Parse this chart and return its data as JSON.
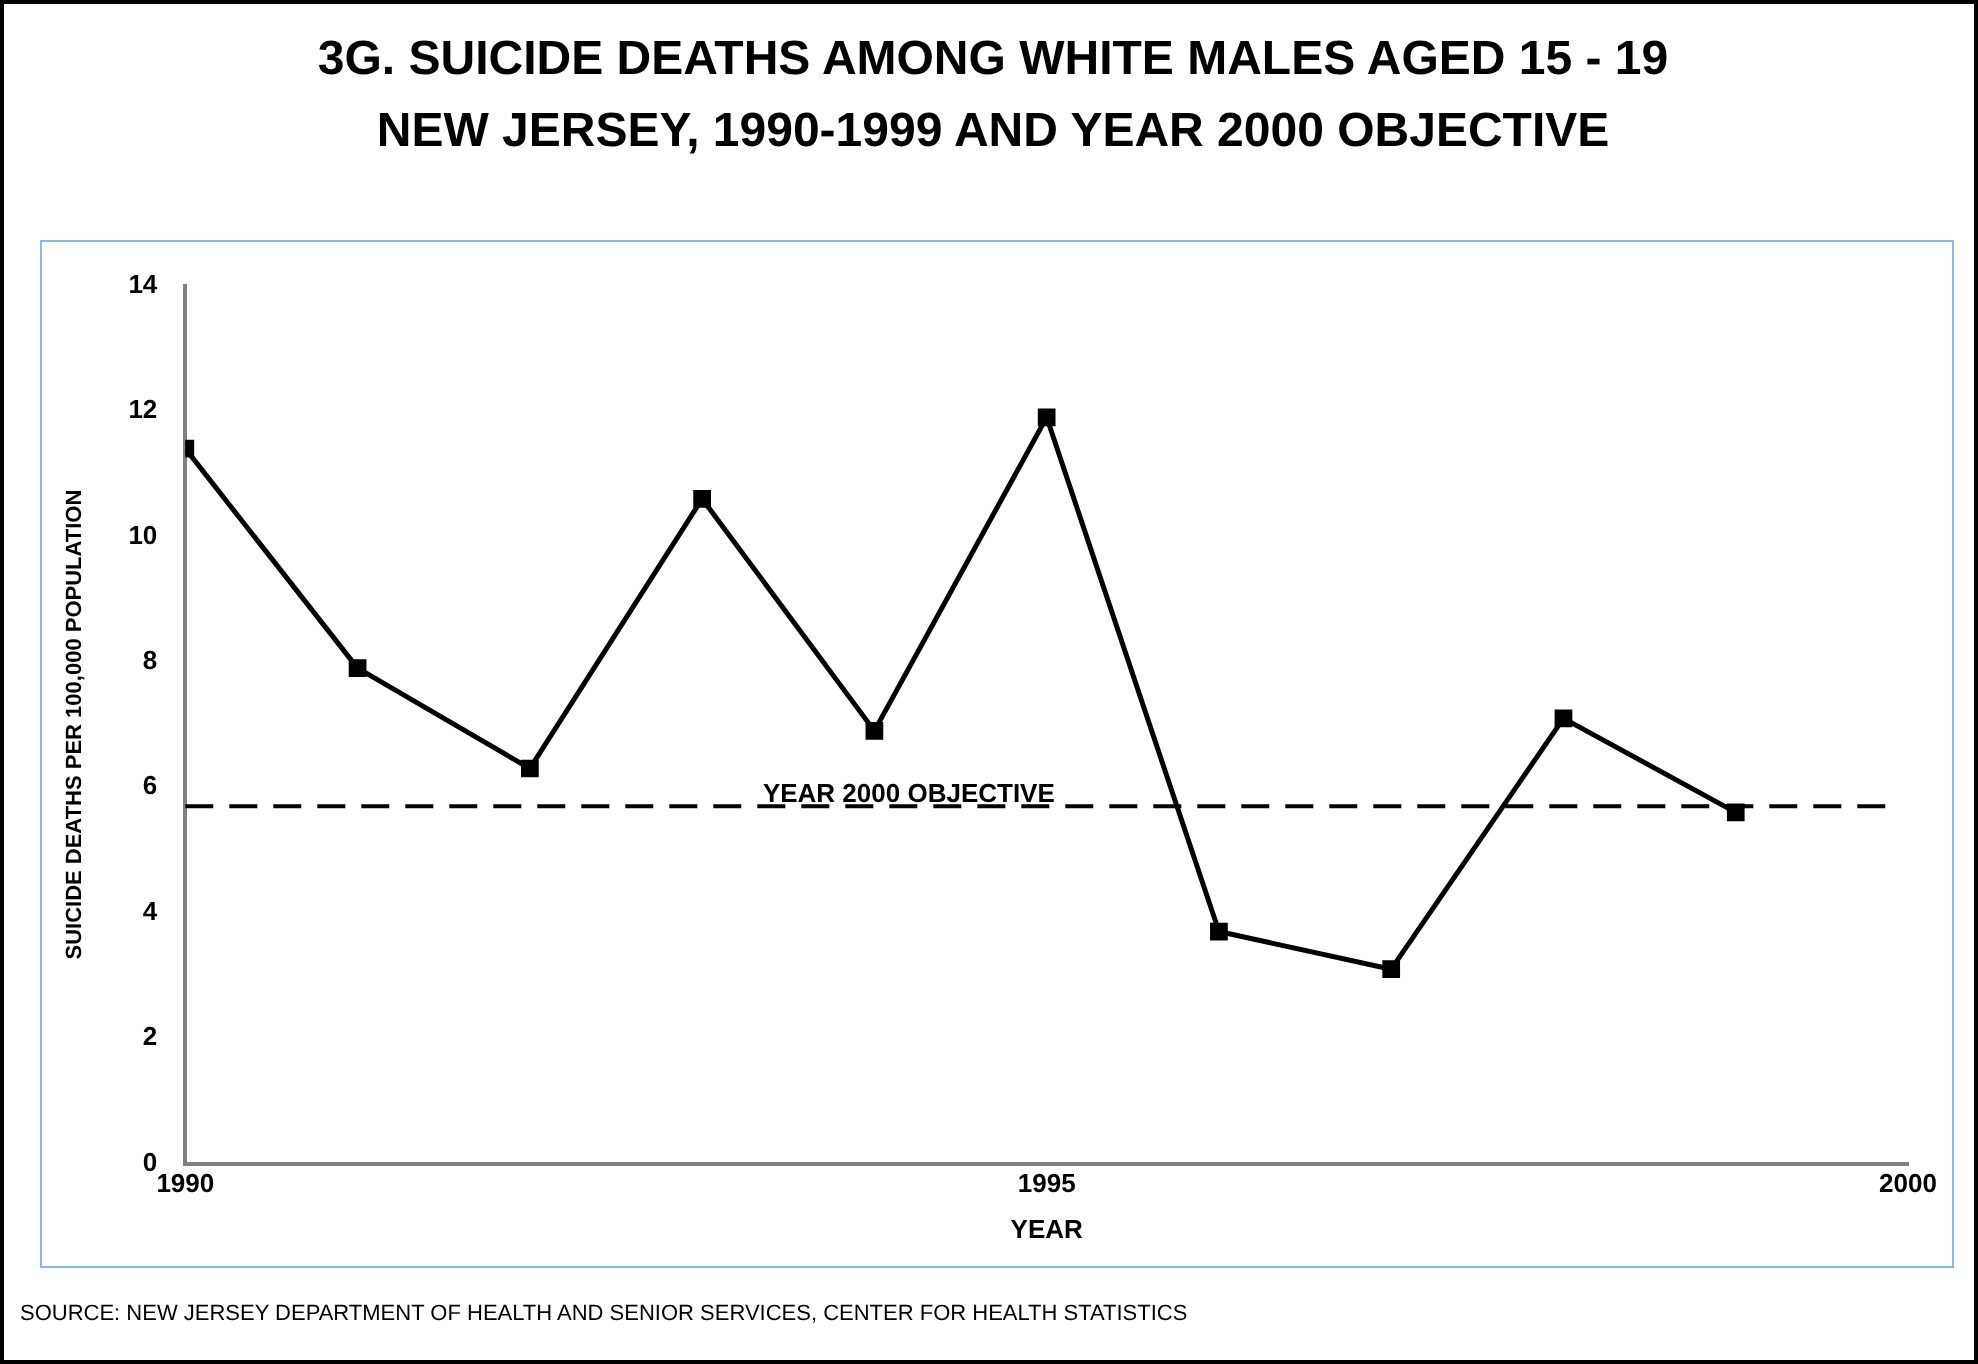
{
  "chart_data": {
    "type": "line",
    "title": "3G. SUICIDE DEATHS AMONG WHITE MALES AGED 15 - 19\nNEW JERSEY, 1990-1999 AND YEAR 2000 OBJECTIVE",
    "xlabel": "YEAR",
    "ylabel": "SUICIDE DEATHS PER 100,000 POPULATION",
    "x": [
      1990,
      1991,
      1992,
      1993,
      1994,
      1995,
      1996,
      1997,
      1998,
      1999
    ],
    "series": [
      {
        "color": "#000000",
        "values": [
          11.4,
          7.9,
          6.3,
          10.6,
          6.9,
          11.9,
          3.7,
          3.1,
          7.1,
          5.6
        ]
      }
    ],
    "xlim": [
      1990,
      2000
    ],
    "xticks": [
      1990,
      1995,
      2000
    ],
    "ylim": [
      0,
      14
    ],
    "yticks": [
      0,
      2,
      4,
      6,
      8,
      10,
      12,
      14
    ],
    "grid": false,
    "legend": false,
    "marker": "square",
    "line_style": "solid",
    "ref_lines": [
      {
        "axis": "y",
        "value": 5.7,
        "label": "YEAR 2000 OBJECTIVE",
        "color": "#000000",
        "line_style": "dashed"
      }
    ],
    "annotations": [
      "SOURCE:  NEW JERSEY DEPARTMENT OF HEALTH AND SENIOR SERVICES, CENTER FOR HEALTH STATISTICS"
    ]
  }
}
